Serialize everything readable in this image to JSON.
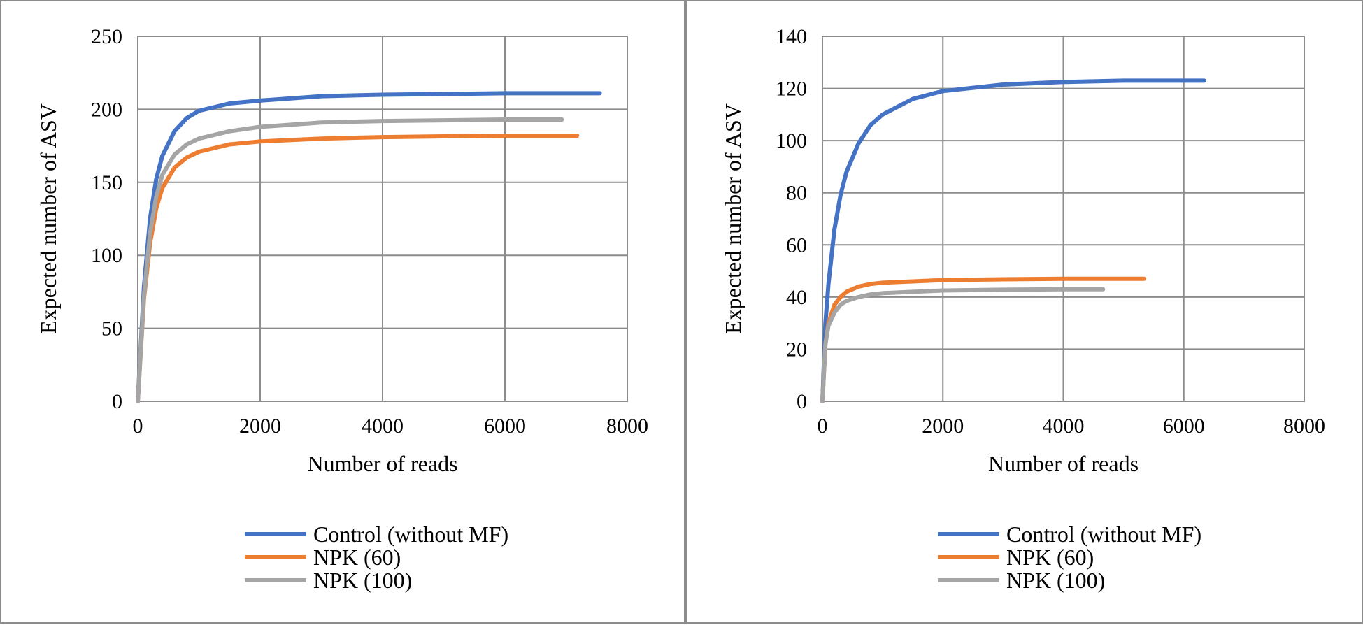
{
  "colors": {
    "control": "#4472C4",
    "npk60": "#ED7D31",
    "npk100": "#A5A5A5",
    "grid": "#8c8c8c",
    "border": "#8c8c8c"
  },
  "chart_data": [
    {
      "type": "line",
      "xlabel": "Number of reads",
      "ylabel": "Expected number of ASV",
      "xlim": [
        0,
        8000
      ],
      "ylim": [
        0,
        250
      ],
      "xticks": [
        "0",
        "2000",
        "4000",
        "6000",
        "8000"
      ],
      "yticks": [
        "0",
        "50",
        "100",
        "150",
        "200",
        "250"
      ],
      "grid": true,
      "legend_position": "bottom",
      "series": [
        {
          "name": "Control (without MF)",
          "color": "#4472C4",
          "x": [
            0,
            100,
            200,
            300,
            400,
            600,
            800,
            1000,
            1500,
            2000,
            3000,
            4000,
            5000,
            6000,
            7000,
            7550
          ],
          "y": [
            0,
            78,
            125,
            152,
            168,
            185,
            194,
            199,
            204,
            206,
            209,
            210,
            210.5,
            211,
            211,
            211
          ]
        },
        {
          "name": "NPK (60)",
          "color": "#ED7D31",
          "x": [
            0,
            100,
            200,
            300,
            400,
            600,
            800,
            1000,
            1500,
            2000,
            3000,
            4000,
            5000,
            6000,
            7000,
            7180
          ],
          "y": [
            0,
            70,
            108,
            132,
            146,
            160,
            167,
            171,
            176,
            178,
            180,
            181,
            181.5,
            182,
            182,
            182
          ]
        },
        {
          "name": "NPK (100)",
          "color": "#A5A5A5",
          "x": [
            0,
            100,
            200,
            300,
            400,
            600,
            800,
            1000,
            1500,
            2000,
            3000,
            4000,
            5000,
            6000,
            6930
          ],
          "y": [
            0,
            72,
            115,
            140,
            155,
            169,
            176,
            180,
            185,
            188,
            191,
            192,
            192.5,
            193,
            193
          ]
        }
      ]
    },
    {
      "type": "line",
      "xlabel": "Number of reads",
      "ylabel": "Expected number of ASV",
      "xlim": [
        0,
        8000
      ],
      "ylim": [
        0,
        140
      ],
      "xticks": [
        "0",
        "2000",
        "4000",
        "6000",
        "8000"
      ],
      "yticks": [
        "0",
        "20",
        "40",
        "60",
        "80",
        "100",
        "120",
        "140"
      ],
      "grid": true,
      "legend_position": "bottom",
      "series": [
        {
          "name": "Control (without MF)",
          "color": "#4472C4",
          "x": [
            0,
            50,
            100,
            200,
            300,
            400,
            600,
            800,
            1000,
            1500,
            2000,
            3000,
            4000,
            5000,
            6000,
            6340
          ],
          "y": [
            0,
            30,
            45,
            66,
            79,
            88,
            99,
            106,
            110,
            116,
            119,
            121.5,
            122.5,
            123,
            123,
            123
          ]
        },
        {
          "name": "NPK (60)",
          "color": "#ED7D31",
          "x": [
            0,
            50,
            100,
            200,
            300,
            400,
            600,
            800,
            1000,
            1500,
            2000,
            3000,
            4000,
            5000,
            5340
          ],
          "y": [
            0,
            22,
            30,
            37,
            40,
            42,
            44,
            45,
            45.5,
            46,
            46.5,
            46.8,
            47,
            47,
            47
          ]
        },
        {
          "name": "NPK (100)",
          "color": "#A5A5A5",
          "x": [
            0,
            50,
            100,
            200,
            300,
            400,
            600,
            800,
            1000,
            1500,
            2000,
            3000,
            4000,
            4660
          ],
          "y": [
            0,
            22,
            29,
            34,
            37,
            38.5,
            40,
            41,
            41.5,
            42,
            42.5,
            42.8,
            43,
            43
          ]
        }
      ]
    }
  ]
}
